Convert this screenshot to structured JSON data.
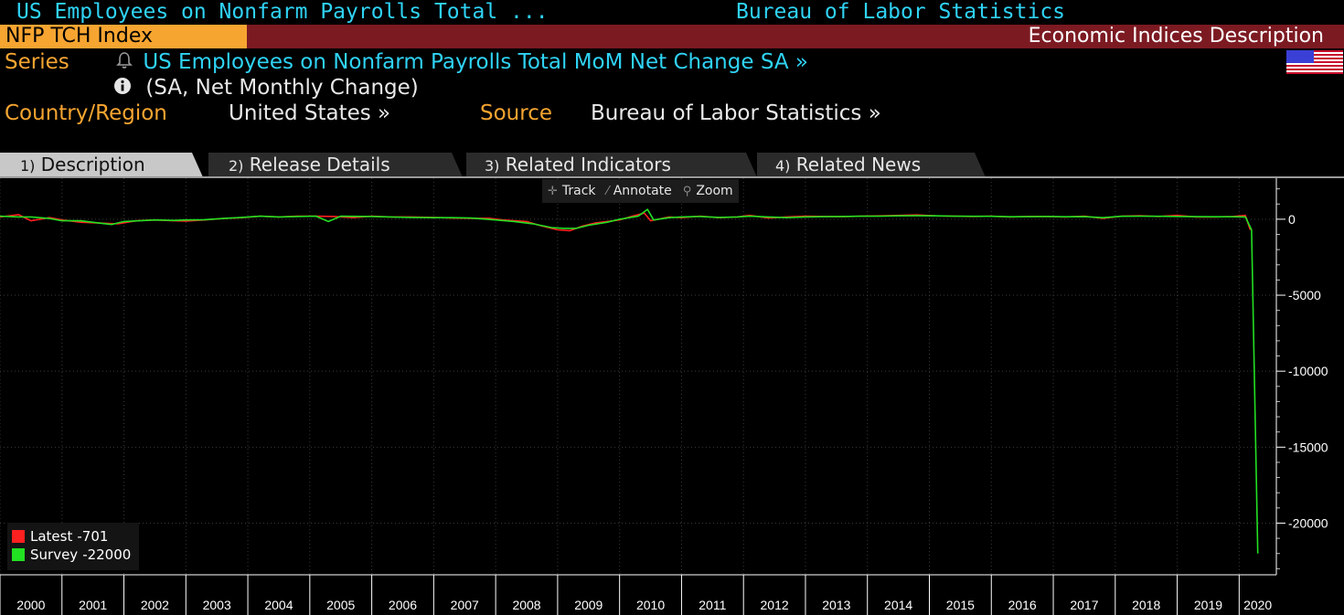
{
  "header": {
    "title": "US Employees on Nonfarm Payrolls Total ...",
    "source_title": "Bureau of Labor Statistics"
  },
  "bar": {
    "ticker": "NFP TCH Index",
    "function_name": "Economic Indices Description"
  },
  "info": {
    "series_label": "Series",
    "series_name": "US Employees on Nonfarm Payrolls Total MoM Net Change SA »",
    "series_sub": "(SA, Net Monthly Change)",
    "country_label": "Country/Region",
    "country_value": "United States »",
    "source_label": "Source",
    "source_value": "Bureau of Labor Statistics »"
  },
  "tabs": [
    {
      "num": "1)",
      "label": "Description",
      "active": true
    },
    {
      "num": "2)",
      "label": "Release Details",
      "active": false
    },
    {
      "num": "3)",
      "label": "Related Indicators",
      "active": false
    },
    {
      "num": "4)",
      "label": "Related News",
      "active": false
    }
  ],
  "toolbar": {
    "track": "Track",
    "annotate": "Annotate",
    "zoom": "Zoom"
  },
  "colors": {
    "latest": "#ff2020",
    "survey": "#22e022",
    "accent_orange": "#f7a531",
    "accent_cyan": "#2fd3f5",
    "bar_red": "#7c1a22"
  },
  "chart_data": {
    "type": "line",
    "x_labels": [
      "2000",
      "2001",
      "2002",
      "2003",
      "2004",
      "2005",
      "2006",
      "2007",
      "2008",
      "2009",
      "2010",
      "2011",
      "2012",
      "2013",
      "2014",
      "2015",
      "2016",
      "2017",
      "2018",
      "2019",
      "2020"
    ],
    "y_ticks": [
      0,
      -5000,
      -10000,
      -15000,
      -20000
    ],
    "y_tick_labels": [
      "0",
      "-5000",
      "-10000",
      "-15000",
      "-20000"
    ],
    "ylim": [
      -23400,
      2700
    ],
    "xlim": [
      2000.0,
      2020.6
    ],
    "grid": true,
    "legend_position": "bottom-left",
    "series": [
      {
        "name": "Latest",
        "legend_value": "-701",
        "color": "#ff2020",
        "points": [
          [
            2000.0,
            150
          ],
          [
            2000.3,
            300
          ],
          [
            2000.5,
            -100
          ],
          [
            2000.8,
            100
          ],
          [
            2001.0,
            -50
          ],
          [
            2001.3,
            -200
          ],
          [
            2001.6,
            -250
          ],
          [
            2001.9,
            -300
          ],
          [
            2002.2,
            -100
          ],
          [
            2002.5,
            -50
          ],
          [
            2002.8,
            -100
          ],
          [
            2003.0,
            -120
          ],
          [
            2003.3,
            -50
          ],
          [
            2003.6,
            50
          ],
          [
            2003.9,
            100
          ],
          [
            2004.2,
            200
          ],
          [
            2004.5,
            150
          ],
          [
            2004.8,
            200
          ],
          [
            2005.1,
            200
          ],
          [
            2005.4,
            180
          ],
          [
            2005.7,
            100
          ],
          [
            2006.0,
            200
          ],
          [
            2006.3,
            150
          ],
          [
            2006.6,
            150
          ],
          [
            2007.0,
            120
          ],
          [
            2007.3,
            80
          ],
          [
            2007.6,
            60
          ],
          [
            2007.9,
            60
          ],
          [
            2008.1,
            -40
          ],
          [
            2008.3,
            -100
          ],
          [
            2008.5,
            -150
          ],
          [
            2008.7,
            -400
          ],
          [
            2008.9,
            -600
          ],
          [
            2009.0,
            -700
          ],
          [
            2009.2,
            -750
          ],
          [
            2009.4,
            -450
          ],
          [
            2009.6,
            -250
          ],
          [
            2009.8,
            -150
          ],
          [
            2010.0,
            -50
          ],
          [
            2010.2,
            200
          ],
          [
            2010.4,
            400
          ],
          [
            2010.5,
            -100
          ],
          [
            2010.8,
            150
          ],
          [
            2011.0,
            100
          ],
          [
            2011.3,
            200
          ],
          [
            2011.6,
            100
          ],
          [
            2011.9,
            150
          ],
          [
            2012.1,
            250
          ],
          [
            2012.4,
            80
          ],
          [
            2012.7,
            150
          ],
          [
            2013.0,
            200
          ],
          [
            2013.3,
            180
          ],
          [
            2013.6,
            170
          ],
          [
            2013.9,
            200
          ],
          [
            2014.2,
            220
          ],
          [
            2014.5,
            250
          ],
          [
            2014.8,
            280
          ],
          [
            2015.1,
            220
          ],
          [
            2015.4,
            200
          ],
          [
            2015.7,
            180
          ],
          [
            2016.0,
            200
          ],
          [
            2016.3,
            150
          ],
          [
            2016.6,
            180
          ],
          [
            2016.9,
            180
          ],
          [
            2017.2,
            150
          ],
          [
            2017.5,
            200
          ],
          [
            2017.8,
            60
          ],
          [
            2018.1,
            200
          ],
          [
            2018.4,
            230
          ],
          [
            2018.7,
            180
          ],
          [
            2019.0,
            250
          ],
          [
            2019.3,
            150
          ],
          [
            2019.6,
            150
          ],
          [
            2019.9,
            180
          ],
          [
            2020.1,
            250
          ],
          [
            2020.18,
            -701
          ]
        ]
      },
      {
        "name": "Survey",
        "legend_value": "-22000",
        "color": "#22e022",
        "points": [
          [
            2000.0,
            200
          ],
          [
            2000.3,
            150
          ],
          [
            2000.5,
            150
          ],
          [
            2000.8,
            50
          ],
          [
            2001.0,
            -100
          ],
          [
            2001.3,
            -100
          ],
          [
            2001.6,
            -250
          ],
          [
            2001.8,
            -350
          ],
          [
            2002.0,
            -150
          ],
          [
            2002.5,
            -50
          ],
          [
            2002.8,
            -80
          ],
          [
            2003.0,
            -50
          ],
          [
            2003.3,
            -30
          ],
          [
            2003.6,
            50
          ],
          [
            2003.9,
            120
          ],
          [
            2004.2,
            200
          ],
          [
            2004.5,
            150
          ],
          [
            2004.8,
            180
          ],
          [
            2005.1,
            200
          ],
          [
            2005.3,
            -150
          ],
          [
            2005.5,
            200
          ],
          [
            2006.0,
            180
          ],
          [
            2006.3,
            150
          ],
          [
            2006.6,
            120
          ],
          [
            2007.0,
            100
          ],
          [
            2007.3,
            100
          ],
          [
            2007.6,
            80
          ],
          [
            2008.0,
            -50
          ],
          [
            2008.3,
            -150
          ],
          [
            2008.6,
            -300
          ],
          [
            2008.9,
            -550
          ],
          [
            2009.1,
            -600
          ],
          [
            2009.3,
            -600
          ],
          [
            2009.5,
            -400
          ],
          [
            2009.8,
            -200
          ],
          [
            2010.0,
            0
          ],
          [
            2010.3,
            200
          ],
          [
            2010.45,
            650
          ],
          [
            2010.55,
            -50
          ],
          [
            2010.8,
            100
          ],
          [
            2011.0,
            150
          ],
          [
            2011.3,
            180
          ],
          [
            2011.6,
            120
          ],
          [
            2011.9,
            150
          ],
          [
            2012.1,
            200
          ],
          [
            2012.4,
            150
          ],
          [
            2012.7,
            100
          ],
          [
            2013.0,
            150
          ],
          [
            2013.3,
            170
          ],
          [
            2013.6,
            180
          ],
          [
            2013.9,
            200
          ],
          [
            2014.2,
            200
          ],
          [
            2014.5,
            220
          ],
          [
            2014.8,
            230
          ],
          [
            2015.1,
            220
          ],
          [
            2015.4,
            200
          ],
          [
            2015.7,
            190
          ],
          [
            2016.0,
            190
          ],
          [
            2016.3,
            160
          ],
          [
            2016.6,
            170
          ],
          [
            2016.9,
            180
          ],
          [
            2017.2,
            160
          ],
          [
            2017.5,
            170
          ],
          [
            2017.8,
            100
          ],
          [
            2018.1,
            190
          ],
          [
            2018.4,
            200
          ],
          [
            2018.7,
            190
          ],
          [
            2019.0,
            180
          ],
          [
            2019.3,
            170
          ],
          [
            2019.6,
            160
          ],
          [
            2019.9,
            160
          ],
          [
            2020.1,
            150
          ],
          [
            2020.2,
            -700
          ],
          [
            2020.3,
            -22000
          ]
        ]
      }
    ]
  }
}
